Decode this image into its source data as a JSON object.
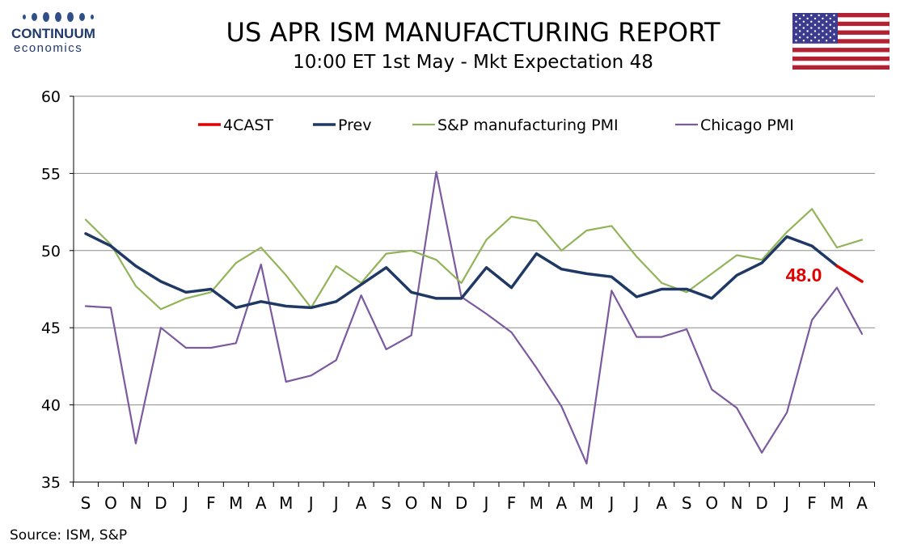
{
  "logo": {
    "name": "CONTINUUM",
    "sub": "economics"
  },
  "header": {
    "title": "US APR ISM MANUFACTURING REPORT",
    "subtitle": "10:00 ET 1st May - Mkt Expectation 48"
  },
  "flag": {
    "icon": "us-flag-icon"
  },
  "chart_data": {
    "type": "line",
    "title": "US APR ISM MANUFACTURING REPORT",
    "subtitle": "10:00 ET 1st May - Mkt Expectation 48",
    "xlabel": "",
    "ylabel": "",
    "ylim": [
      35,
      60
    ],
    "yticks": [
      35,
      40,
      45,
      50,
      55,
      60
    ],
    "grid": true,
    "legend_position": "top",
    "categories": [
      "S",
      "O",
      "N",
      "D",
      "J",
      "F",
      "M",
      "A",
      "M",
      "J",
      "J",
      "A",
      "S",
      "O",
      "N",
      "D",
      "J",
      "F",
      "M",
      "A",
      "M",
      "J",
      "J",
      "A",
      "S",
      "O",
      "N",
      "D",
      "J",
      "F",
      "M",
      "A"
    ],
    "series": [
      {
        "name": "4CAST",
        "color": "#e00000",
        "values": [
          null,
          null,
          null,
          null,
          null,
          null,
          null,
          null,
          null,
          null,
          null,
          null,
          null,
          null,
          null,
          null,
          null,
          null,
          null,
          null,
          null,
          null,
          null,
          null,
          null,
          null,
          null,
          null,
          null,
          null,
          49.0,
          48.0
        ]
      },
      {
        "name": "Prev",
        "color": "#1f3864",
        "values": [
          51.1,
          50.3,
          49.0,
          48.0,
          47.3,
          47.5,
          46.3,
          46.7,
          46.4,
          46.3,
          46.7,
          47.8,
          48.9,
          47.3,
          46.9,
          46.9,
          48.9,
          47.6,
          49.8,
          48.8,
          48.5,
          48.3,
          47.0,
          47.5,
          47.5,
          46.9,
          48.4,
          49.2,
          50.9,
          50.3,
          49.0,
          null
        ]
      },
      {
        "name": "S&P manufacturing PMI",
        "color": "#92b458",
        "values": [
          52.0,
          50.4,
          47.7,
          46.2,
          46.9,
          47.3,
          49.2,
          50.2,
          48.4,
          46.3,
          49.0,
          47.9,
          49.8,
          50.0,
          49.4,
          47.9,
          50.7,
          52.2,
          51.9,
          50.0,
          51.3,
          51.6,
          49.6,
          47.9,
          47.3,
          48.5,
          49.7,
          49.4,
          51.2,
          52.7,
          50.2,
          50.7
        ]
      },
      {
        "name": "Chicago PMI",
        "color": "#7b5a9e",
        "values": [
          46.4,
          46.3,
          37.5,
          45.0,
          43.7,
          43.7,
          44.0,
          49.1,
          41.5,
          41.9,
          42.9,
          47.1,
          43.6,
          44.5,
          55.1,
          47.0,
          45.9,
          44.7,
          42.4,
          39.9,
          36.2,
          47.4,
          44.4,
          44.4,
          44.9,
          41.0,
          39.8,
          36.9,
          39.5,
          45.5,
          47.6,
          44.6
        ]
      }
    ],
    "annotations": [
      {
        "text": "48.0",
        "color": "#e00000"
      }
    ]
  },
  "source": "Source: ISM, S&P"
}
